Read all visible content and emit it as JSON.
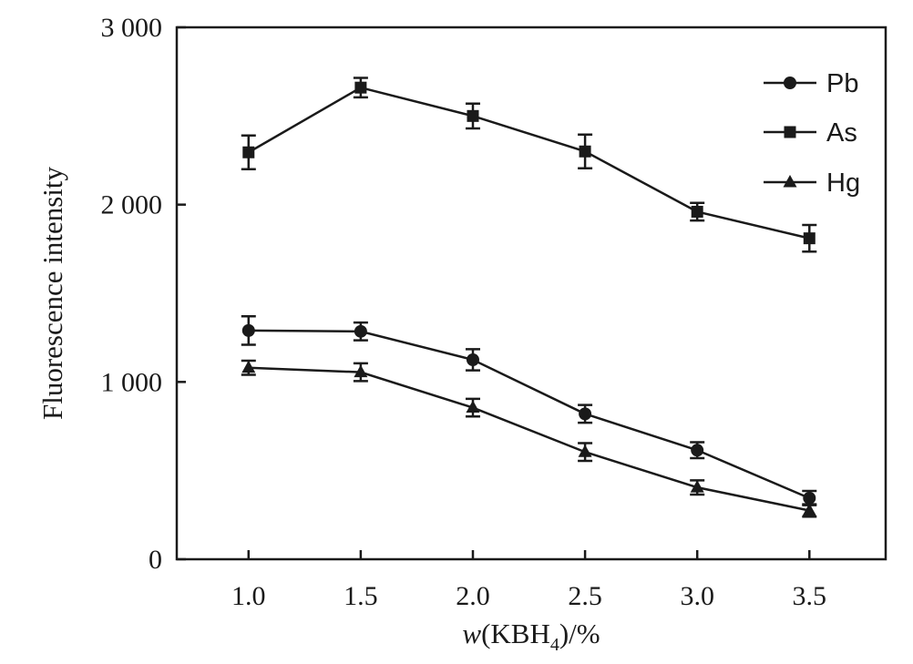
{
  "chart_data": {
    "type": "line",
    "xlabel": {
      "prefix": "w",
      "open": "(KBH",
      "sub": "4",
      "close": ")/%"
    },
    "ylabel": "Fluorescence intensity",
    "x": [
      1.0,
      1.5,
      2.0,
      2.5,
      3.0,
      3.5
    ],
    "x_tick_labels": [
      "1.0",
      "1.5",
      "2.0",
      "2.5",
      "3.0",
      "3.5"
    ],
    "xlim": [
      0.68,
      3.84
    ],
    "ylim": [
      0,
      3000
    ],
    "y_ticks": [
      0,
      1000,
      2000,
      3000
    ],
    "y_tick_labels": [
      "0",
      "1 000",
      "2 000",
      "3 000"
    ],
    "legend_position": "top-right",
    "grid": false,
    "series": [
      {
        "name": "Pb",
        "marker": "circle",
        "values": [
          1290,
          1285,
          1125,
          820,
          615,
          345
        ],
        "errors": [
          80,
          50,
          60,
          50,
          45,
          40
        ]
      },
      {
        "name": "As",
        "marker": "square",
        "values": [
          2295,
          2660,
          2500,
          2300,
          1960,
          1810
        ],
        "errors": [
          95,
          55,
          70,
          95,
          50,
          75
        ]
      },
      {
        "name": "Hg",
        "marker": "triangle",
        "values": [
          1080,
          1055,
          855,
          605,
          405,
          275
        ],
        "errors": [
          40,
          50,
          50,
          50,
          40,
          35
        ]
      }
    ]
  }
}
